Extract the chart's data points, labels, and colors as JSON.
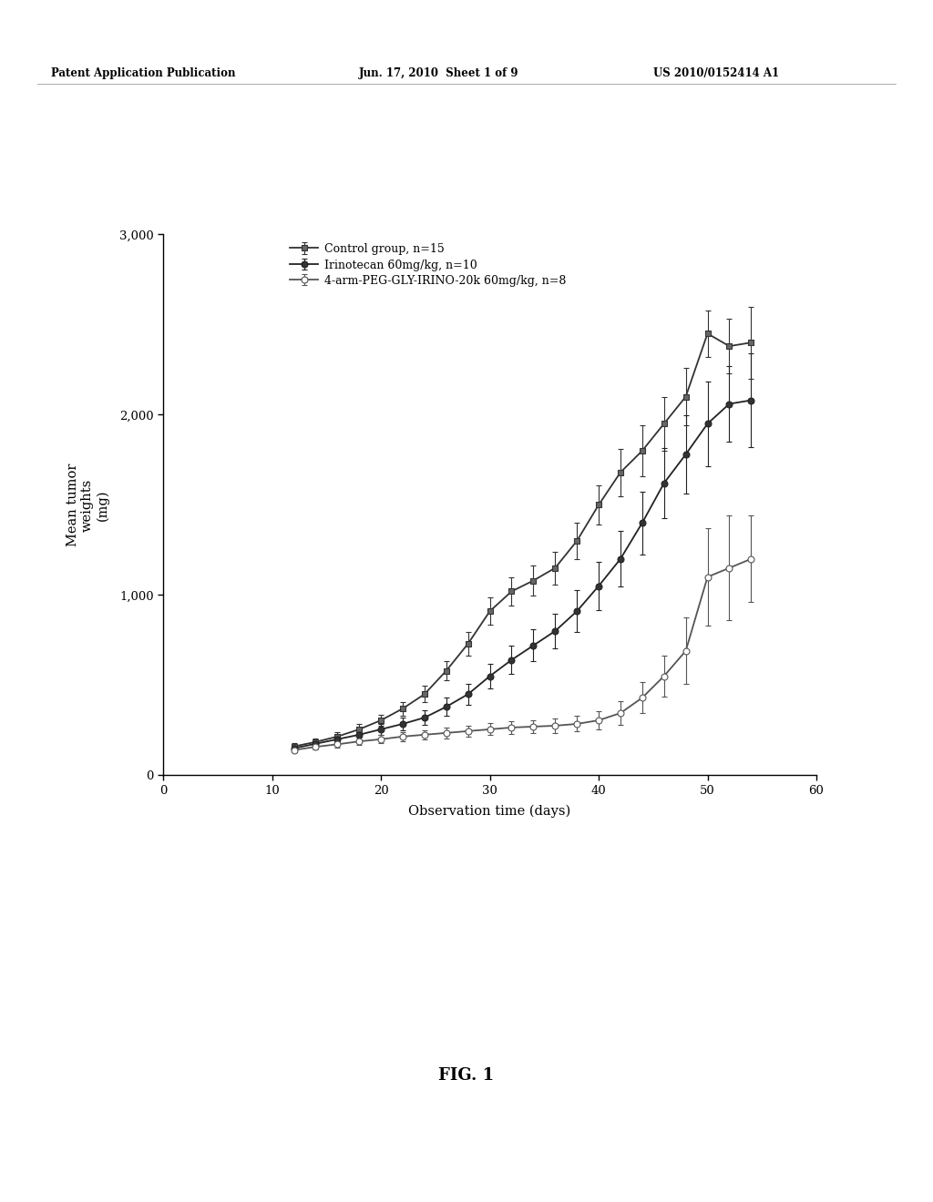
{
  "background_color": "#ffffff",
  "header_left": "Patent Application Publication",
  "header_mid": "Jun. 17, 2010  Sheet 1 of 9",
  "header_right": "US 2010/0152414 A1",
  "fig_label": "FIG. 1",
  "xlabel": "Observation time (days)",
  "ylabel": "Mean tumor\nweights\n(mg)",
  "xlim": [
    0,
    60
  ],
  "ylim": [
    0,
    3000
  ],
  "xticks": [
    0,
    10,
    20,
    30,
    40,
    50,
    60
  ],
  "yticks": [
    0,
    1000,
    2000,
    3000
  ],
  "ytick_labels": [
    "0",
    "1,000",
    "2,000",
    "3,000"
  ],
  "series": [
    {
      "label": "Control group, n=15",
      "color": "#333333",
      "marker": "s",
      "marker_fill": "#666666",
      "linestyle": "-",
      "x": [
        12,
        14,
        16,
        18,
        20,
        22,
        24,
        26,
        28,
        30,
        32,
        34,
        36,
        38,
        40,
        42,
        44,
        46,
        48,
        50,
        52,
        54
      ],
      "y": [
        160,
        185,
        215,
        255,
        305,
        370,
        450,
        580,
        730,
        910,
        1020,
        1080,
        1150,
        1300,
        1500,
        1680,
        1800,
        1950,
        2100,
        2450,
        2380,
        2400
      ],
      "yerr": [
        18,
        20,
        24,
        28,
        32,
        38,
        45,
        55,
        65,
        75,
        80,
        85,
        90,
        100,
        110,
        130,
        140,
        150,
        160,
        130,
        150,
        200
      ]
    },
    {
      "label": "Irinotecan 60mg/kg, n=10",
      "color": "#222222",
      "marker": "o",
      "marker_fill": "#333333",
      "linestyle": "-",
      "x": [
        12,
        14,
        16,
        18,
        20,
        22,
        24,
        26,
        28,
        30,
        32,
        34,
        36,
        38,
        40,
        42,
        44,
        46,
        48,
        50,
        52,
        54
      ],
      "y": [
        150,
        175,
        200,
        225,
        255,
        285,
        320,
        380,
        450,
        550,
        640,
        720,
        800,
        910,
        1050,
        1200,
        1400,
        1620,
        1780,
        1950,
        2060,
        2080
      ],
      "yerr": [
        15,
        18,
        22,
        26,
        30,
        35,
        42,
        50,
        58,
        68,
        78,
        88,
        98,
        115,
        135,
        155,
        175,
        195,
        215,
        235,
        210,
        260
      ]
    },
    {
      "label": "4-arm-PEG-GLY-IRINO-20k 60mg/kg, n=8",
      "color": "#555555",
      "marker": "o",
      "marker_fill": "#ffffff",
      "linestyle": "-",
      "x": [
        12,
        14,
        16,
        18,
        20,
        22,
        24,
        26,
        28,
        30,
        32,
        34,
        36,
        38,
        40,
        42,
        44,
        46,
        48,
        50,
        52,
        54
      ],
      "y": [
        140,
        158,
        172,
        188,
        200,
        215,
        225,
        235,
        245,
        255,
        265,
        270,
        275,
        285,
        305,
        345,
        430,
        550,
        690,
        1100,
        1150,
        1200
      ],
      "yerr": [
        14,
        16,
        18,
        20,
        22,
        25,
        27,
        29,
        31,
        33,
        35,
        37,
        39,
        43,
        50,
        65,
        85,
        115,
        185,
        270,
        290,
        240
      ]
    }
  ]
}
